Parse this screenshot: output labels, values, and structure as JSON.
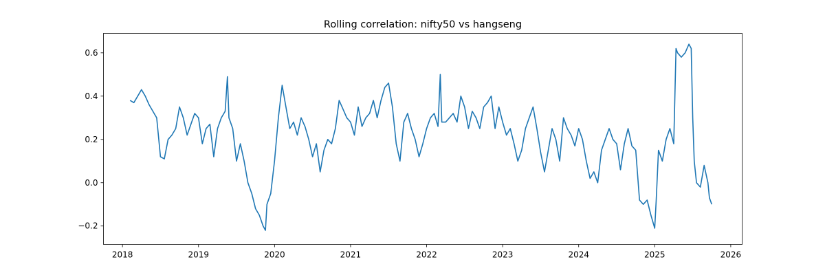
{
  "chart_data": {
    "type": "line",
    "title": "Rolling correlation: nifty50 vs hangseng",
    "xlabel": "",
    "ylabel": "",
    "xlim": [
      2017.75,
      2026.15
    ],
    "ylim": [
      -0.285,
      0.69
    ],
    "x_ticks": [
      2018,
      2019,
      2020,
      2021,
      2022,
      2023,
      2024,
      2025,
      2026
    ],
    "x_tick_labels": [
      "2018",
      "2019",
      "2020",
      "2021",
      "2022",
      "2023",
      "2024",
      "2025",
      "2026"
    ],
    "y_ticks": [
      -0.2,
      0.0,
      0.2,
      0.4,
      0.6
    ],
    "y_tick_labels": [
      "−0.2",
      "0.0",
      "0.2",
      "0.4",
      "0.6"
    ],
    "grid": false,
    "legend": "none",
    "series": [
      {
        "color": "#1f77b4",
        "x": [
          2018.1,
          2018.15,
          2018.2,
          2018.25,
          2018.3,
          2018.35,
          2018.4,
          2018.45,
          2018.5,
          2018.55,
          2018.6,
          2018.65,
          2018.7,
          2018.75,
          2018.8,
          2018.85,
          2018.9,
          2018.95,
          2019.0,
          2019.05,
          2019.1,
          2019.15,
          2019.2,
          2019.25,
          2019.3,
          2019.35,
          2019.38,
          2019.4,
          2019.45,
          2019.5,
          2019.55,
          2019.6,
          2019.65,
          2019.7,
          2019.75,
          2019.8,
          2019.85,
          2019.88,
          2019.9,
          2019.95,
          2020.0,
          2020.05,
          2020.1,
          2020.15,
          2020.2,
          2020.25,
          2020.3,
          2020.35,
          2020.4,
          2020.45,
          2020.5,
          2020.55,
          2020.6,
          2020.65,
          2020.7,
          2020.75,
          2020.8,
          2020.85,
          2020.9,
          2020.95,
          2021.0,
          2021.05,
          2021.1,
          2021.15,
          2021.2,
          2021.25,
          2021.3,
          2021.35,
          2021.4,
          2021.45,
          2021.5,
          2021.55,
          2021.6,
          2021.65,
          2021.7,
          2021.75,
          2021.8,
          2021.85,
          2021.9,
          2021.95,
          2022.0,
          2022.05,
          2022.1,
          2022.15,
          2022.18,
          2022.2,
          2022.25,
          2022.3,
          2022.35,
          2022.4,
          2022.45,
          2022.5,
          2022.55,
          2022.6,
          2022.65,
          2022.7,
          2022.75,
          2022.8,
          2022.85,
          2022.9,
          2022.95,
          2023.0,
          2023.05,
          2023.1,
          2023.15,
          2023.2,
          2023.25,
          2023.3,
          2023.35,
          2023.4,
          2023.45,
          2023.5,
          2023.55,
          2023.6,
          2023.65,
          2023.7,
          2023.75,
          2023.8,
          2023.85,
          2023.9,
          2023.95,
          2024.0,
          2024.05,
          2024.1,
          2024.15,
          2024.2,
          2024.25,
          2024.3,
          2024.35,
          2024.4,
          2024.45,
          2024.5,
          2024.55,
          2024.6,
          2024.65,
          2024.7,
          2024.75,
          2024.8,
          2024.85,
          2024.9,
          2024.95,
          2025.0,
          2025.02,
          2025.05,
          2025.1,
          2025.15,
          2025.2,
          2025.25,
          2025.28,
          2025.3,
          2025.35,
          2025.4,
          2025.45,
          2025.48,
          2025.5,
          2025.52,
          2025.55,
          2025.6,
          2025.65,
          2025.7,
          2025.72,
          2025.75
        ],
        "values": [
          0.38,
          0.37,
          0.4,
          0.43,
          0.4,
          0.36,
          0.33,
          0.3,
          0.12,
          0.11,
          0.2,
          0.22,
          0.25,
          0.35,
          0.3,
          0.22,
          0.27,
          0.32,
          0.3,
          0.18,
          0.25,
          0.27,
          0.12,
          0.25,
          0.3,
          0.33,
          0.49,
          0.3,
          0.25,
          0.1,
          0.18,
          0.1,
          0.0,
          -0.05,
          -0.12,
          -0.15,
          -0.2,
          -0.22,
          -0.1,
          -0.05,
          0.1,
          0.3,
          0.45,
          0.35,
          0.25,
          0.28,
          0.22,
          0.3,
          0.26,
          0.2,
          0.12,
          0.18,
          0.05,
          0.15,
          0.2,
          0.18,
          0.25,
          0.38,
          0.34,
          0.3,
          0.28,
          0.22,
          0.35,
          0.26,
          0.3,
          0.32,
          0.38,
          0.3,
          0.38,
          0.44,
          0.46,
          0.35,
          0.18,
          0.1,
          0.28,
          0.32,
          0.25,
          0.2,
          0.12,
          0.18,
          0.25,
          0.3,
          0.32,
          0.26,
          0.5,
          0.28,
          0.28,
          0.3,
          0.32,
          0.28,
          0.4,
          0.35,
          0.25,
          0.33,
          0.3,
          0.25,
          0.35,
          0.37,
          0.4,
          0.25,
          0.35,
          0.28,
          0.22,
          0.25,
          0.18,
          0.1,
          0.15,
          0.25,
          0.3,
          0.35,
          0.25,
          0.14,
          0.05,
          0.15,
          0.25,
          0.2,
          0.1,
          0.3,
          0.25,
          0.22,
          0.17,
          0.25,
          0.2,
          0.1,
          0.02,
          0.05,
          0.0,
          0.15,
          0.2,
          0.25,
          0.2,
          0.18,
          0.06,
          0.18,
          0.25,
          0.17,
          0.15,
          -0.08,
          -0.1,
          -0.08,
          -0.15,
          -0.21,
          -0.08,
          0.15,
          0.1,
          0.2,
          0.25,
          0.18,
          0.62,
          0.6,
          0.58,
          0.6,
          0.64,
          0.62,
          0.3,
          0.1,
          0.0,
          -0.02,
          0.08,
          0.0,
          -0.07,
          -0.1
        ]
      }
    ]
  }
}
